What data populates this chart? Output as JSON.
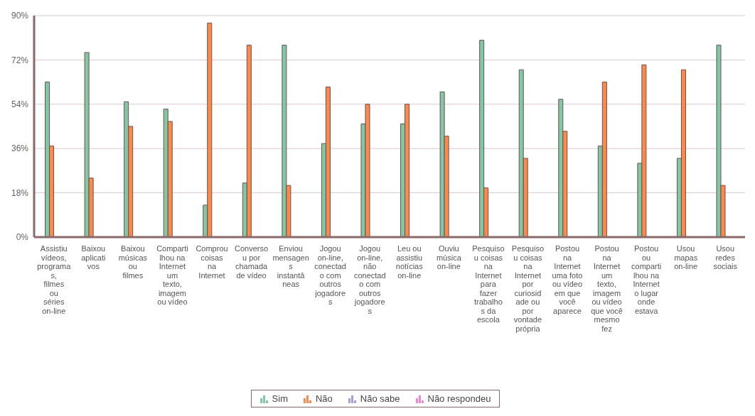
{
  "chart_data": {
    "type": "bar",
    "categories": [
      "Assistiu vídeos, programas, filmes ou séries on-line",
      "Baixou aplicativos",
      "Baixou músicas ou filmes",
      "Compartilhou na Internet um texto, imagem ou vídeo",
      "Comprou coisas na Internet",
      "Conversou por chamada de vídeo",
      "Enviou mensagens instantâneas",
      "Jogou on-line, conectado com outros jogadores",
      "Jogou on-line, não conectado com outros jogadores",
      "Leu ou assistiu notícias on-line",
      "Ouviu música on-line",
      "Pesquisou coisas na Internet para fazer trabalhos da escola",
      "Pesquisou coisas na Internet por curiosidade ou por vontade própria",
      "Postou na Internet uma foto ou vídeo em que você aparece",
      "Postou na Internet um texto, imagem ou vídeo que você mesmo fez",
      "Postou ou compartilhou na Internet o lugar onde estava",
      "Usou mapas on-line",
      "Usou redes sociais"
    ],
    "series": [
      {
        "name": "Sim",
        "color": "#80c9a4",
        "values": [
          63,
          75,
          55,
          52,
          13,
          22,
          78,
          38,
          46,
          46,
          59,
          80,
          68,
          56,
          37,
          30,
          32,
          78
        ]
      },
      {
        "name": "Não",
        "color": "#fd8a4a",
        "values": [
          37,
          24,
          45,
          47,
          87,
          78,
          21,
          61,
          54,
          54,
          41,
          20,
          32,
          43,
          63,
          70,
          68,
          21
        ]
      },
      {
        "name": "Não sabe",
        "color": "#a69ee0",
        "values": [
          null,
          null,
          null,
          null,
          null,
          null,
          null,
          null,
          null,
          null,
          null,
          null,
          null,
          null,
          null,
          null,
          null,
          null
        ]
      },
      {
        "name": "Não respondeu",
        "color": "#ee88d6",
        "values": [
          null,
          null,
          null,
          null,
          null,
          null,
          null,
          null,
          null,
          null,
          null,
          null,
          null,
          null,
          null,
          null,
          null,
          null
        ]
      }
    ],
    "ylim": [
      0,
      90
    ],
    "yticks": [
      {
        "value": 0,
        "label": "0%"
      },
      {
        "value": 18,
        "label": "18%"
      },
      {
        "value": 36,
        "label": "36%"
      },
      {
        "value": 54,
        "label": "54%"
      },
      {
        "value": 72,
        "label": "72%"
      },
      {
        "value": 90,
        "label": "90%"
      }
    ],
    "grid": "y",
    "legend": "bottom"
  }
}
